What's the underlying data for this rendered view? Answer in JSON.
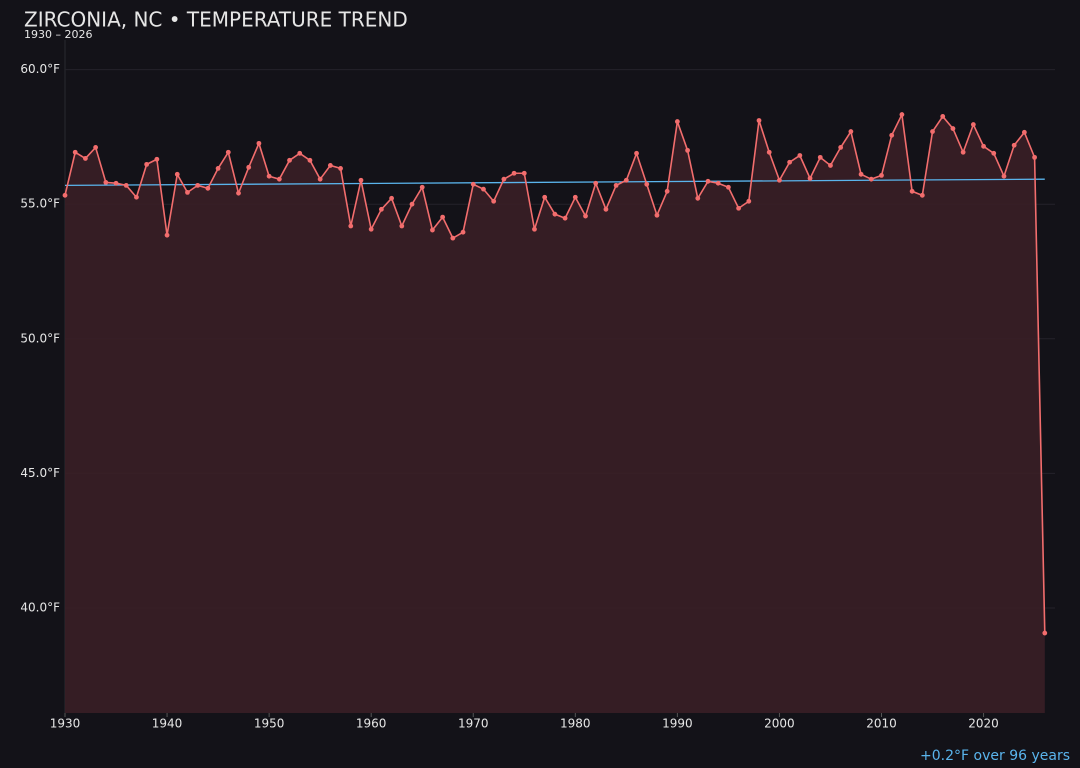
{
  "chart_data": {
    "type": "line",
    "title": "ZIRCONIA, NC • TEMPERATURE TREND",
    "subtitle": "1930 – 2026",
    "color": "#f26d6d",
    "area_color": "#3a1f26",
    "x": [
      1930,
      1931,
      1932,
      1933,
      1934,
      1935,
      1936,
      1937,
      1938,
      1939,
      1940,
      1941,
      1942,
      1943,
      1944,
      1945,
      1946,
      1947,
      1948,
      1949,
      1950,
      1951,
      1952,
      1953,
      1954,
      1955,
      1956,
      1957,
      1958,
      1959,
      1960,
      1961,
      1962,
      1963,
      1964,
      1965,
      1966,
      1967,
      1968,
      1969,
      1970,
      1971,
      1972,
      1973,
      1974,
      1975,
      1976,
      1977,
      1978,
      1979,
      1980,
      1981,
      1982,
      1983,
      1984,
      1985,
      1986,
      1987,
      1988,
      1989,
      1990,
      1991,
      1992,
      1993,
      1994,
      1995,
      1996,
      1997,
      1998,
      1999,
      2000,
      2001,
      2002,
      2003,
      2004,
      2005,
      2006,
      2007,
      2008,
      2009,
      2010,
      2011,
      2012,
      2013,
      2014,
      2015,
      2016,
      2017,
      2018,
      2019,
      2020,
      2021,
      2022,
      2023,
      2024,
      2025,
      2026
    ],
    "values": [
      55.33,
      56.93,
      56.7,
      57.11,
      55.81,
      55.78,
      55.7,
      55.26,
      56.48,
      56.67,
      53.85,
      56.11,
      55.44,
      55.7,
      55.59,
      56.33,
      56.93,
      55.41,
      56.37,
      57.26,
      56.04,
      55.93,
      56.63,
      56.89,
      56.63,
      55.93,
      56.44,
      56.33,
      54.19,
      55.89,
      54.07,
      54.81,
      55.22,
      54.19,
      55.0,
      55.63,
      54.04,
      54.52,
      53.74,
      53.96,
      55.74,
      55.56,
      55.11,
      55.93,
      56.15,
      56.15,
      54.07,
      55.26,
      54.63,
      54.48,
      55.26,
      54.56,
      55.78,
      54.81,
      55.7,
      55.89,
      56.89,
      55.74,
      54.59,
      55.48,
      58.07,
      57.0,
      55.22,
      55.85,
      55.78,
      55.63,
      54.85,
      55.11,
      58.11,
      56.93,
      55.89,
      56.56,
      56.81,
      55.96,
      56.74,
      56.44,
      57.11,
      57.7,
      56.11,
      55.93,
      56.07,
      57.56,
      58.33,
      55.48,
      55.33,
      57.7,
      58.26,
      57.81,
      56.93,
      57.96,
      57.15,
      56.89,
      56.04,
      57.19,
      57.67,
      56.74,
      39.07
    ],
    "trend": {
      "x": [
        1930,
        2026
      ],
      "values": [
        55.7,
        55.93
      ],
      "color": "#5ab4ec"
    },
    "annotation": "+0.2°F over 96 years",
    "xlim": [
      1930,
      2027
    ],
    "ylim": [
      36.1,
      61.1
    ],
    "xticks": [
      1930,
      1940,
      1950,
      1960,
      1970,
      1980,
      1990,
      2000,
      2010,
      2020
    ],
    "yticks": [
      {
        "value": 40,
        "label": "40.0°F"
      },
      {
        "value": 45,
        "label": "45.0°F"
      },
      {
        "value": 50,
        "label": "50.0°F"
      },
      {
        "value": 55,
        "label": "55.0°F"
      },
      {
        "value": 60,
        "label": "60.0°F"
      }
    ],
    "grid": true
  }
}
